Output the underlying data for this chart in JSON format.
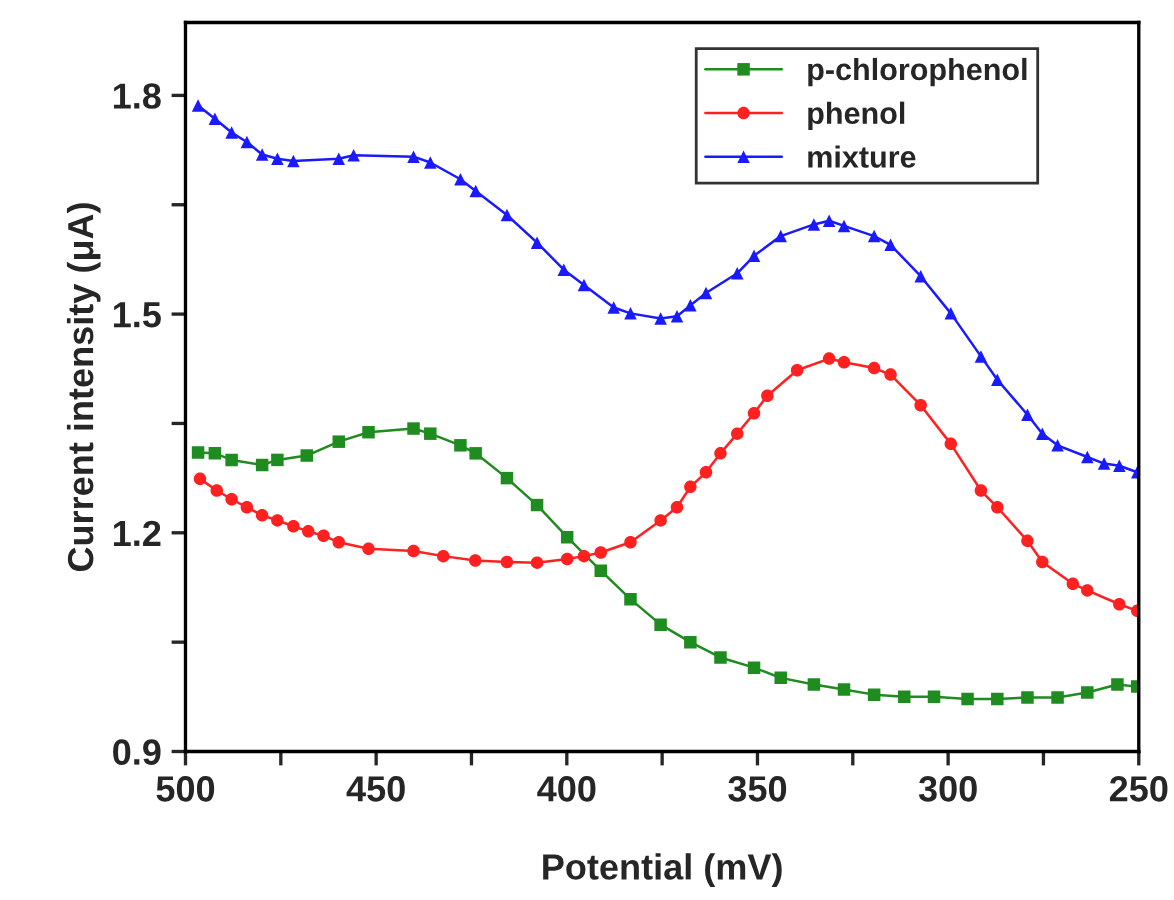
{
  "chart_data": {
    "type": "line",
    "xlabel": "Potential (mV)",
    "ylabel": "Current intensity (μA)",
    "xlim": [
      500,
      250
    ],
    "ylim": [
      0.9,
      1.9
    ],
    "xticks": [
      500,
      {
        "value": 475,
        "label": null
      },
      450,
      {
        "value": 425,
        "label": null
      },
      400,
      {
        "value": 375,
        "label": null
      },
      350,
      {
        "value": 325,
        "label": null
      },
      300,
      {
        "value": 275,
        "label": null
      },
      250
    ],
    "yticks": [
      0.9,
      {
        "value": 1.05,
        "label": null
      },
      1.2,
      {
        "value": 1.35,
        "label": null
      },
      1.5,
      {
        "value": 1.65,
        "label": null
      },
      1.8
    ],
    "grid": false,
    "legend": "top right",
    "line_style": "solid",
    "series": [
      {
        "name": "p-chlorophenol",
        "color": "#1e8c1e",
        "marker": "square",
        "x": [
          496.7,
          492.3,
          487.9,
          479.9,
          475.9,
          468.2,
          459.8,
          452.0,
          440.2,
          435.8,
          427.9,
          423.9,
          415.7,
          407.8,
          399.9,
          391.1,
          383.3,
          375.4,
          367.6,
          359.7,
          350.9,
          343.9,
          335.2,
          327.3,
          319.4,
          311.5,
          303.7,
          294.9,
          287.1,
          279.2,
          271.3,
          263.5,
          255.6,
          250.4
        ],
        "values": [
          1.31,
          1.309,
          1.3,
          1.293,
          1.3,
          1.306,
          1.325,
          1.338,
          1.343,
          1.336,
          1.32,
          1.309,
          1.275,
          1.238,
          1.194,
          1.148,
          1.109,
          1.074,
          1.05,
          1.029,
          1.015,
          1.001,
          0.992,
          0.985,
          0.978,
          0.975,
          0.975,
          0.972,
          0.972,
          0.974,
          0.974,
          0.981,
          0.992,
          0.989
        ]
      },
      {
        "name": "phenol",
        "color": "#ff2020",
        "marker": "circle",
        "x": [
          496.2,
          491.8,
          487.9,
          483.9,
          479.9,
          475.9,
          471.7,
          467.8,
          463.8,
          459.8,
          452.0,
          440.2,
          432.4,
          424.0,
          415.7,
          407.8,
          399.9,
          395.5,
          391.1,
          383.3,
          375.4,
          371.1,
          367.6,
          363.5,
          359.7,
          355.3,
          350.9,
          347.4,
          339.6,
          331.2,
          327.3,
          319.4,
          315.1,
          307.2,
          299.3,
          291.4,
          287.1,
          279.2,
          275.3,
          267.3,
          263.5,
          255.1,
          250.4
        ],
        "values": [
          1.274,
          1.258,
          1.246,
          1.235,
          1.224,
          1.217,
          1.209,
          1.202,
          1.196,
          1.187,
          1.178,
          1.175,
          1.168,
          1.162,
          1.16,
          1.159,
          1.164,
          1.168,
          1.173,
          1.187,
          1.217,
          1.235,
          1.263,
          1.283,
          1.309,
          1.336,
          1.364,
          1.388,
          1.423,
          1.439,
          1.434,
          1.426,
          1.417,
          1.375,
          1.322,
          1.258,
          1.235,
          1.189,
          1.16,
          1.13,
          1.121,
          1.102,
          1.093
        ]
      },
      {
        "name": "mixture",
        "color": "#1a1aff",
        "marker": "triangle",
        "x": [
          496.7,
          492.3,
          487.9,
          483.9,
          479.9,
          475.9,
          471.7,
          459.8,
          455.9,
          440.2,
          435.8,
          427.9,
          423.9,
          415.7,
          407.8,
          400.8,
          395.5,
          387.7,
          383.3,
          375.4,
          371.1,
          367.6,
          363.5,
          355.3,
          350.9,
          343.9,
          335.2,
          331.2,
          327.3,
          319.4,
          315.1,
          307.2,
          299.3,
          291.4,
          287.1,
          279.2,
          275.3,
          271.3,
          263.5,
          259.1,
          255.1,
          250.4
        ],
        "values": [
          1.786,
          1.768,
          1.749,
          1.736,
          1.719,
          1.713,
          1.71,
          1.713,
          1.718,
          1.716,
          1.708,
          1.685,
          1.669,
          1.636,
          1.598,
          1.561,
          1.54,
          1.509,
          1.501,
          1.494,
          1.497,
          1.512,
          1.529,
          1.556,
          1.58,
          1.607,
          1.623,
          1.628,
          1.621,
          1.607,
          1.595,
          1.552,
          1.501,
          1.442,
          1.41,
          1.362,
          1.336,
          1.32,
          1.304,
          1.295,
          1.292,
          1.283
        ]
      }
    ]
  }
}
